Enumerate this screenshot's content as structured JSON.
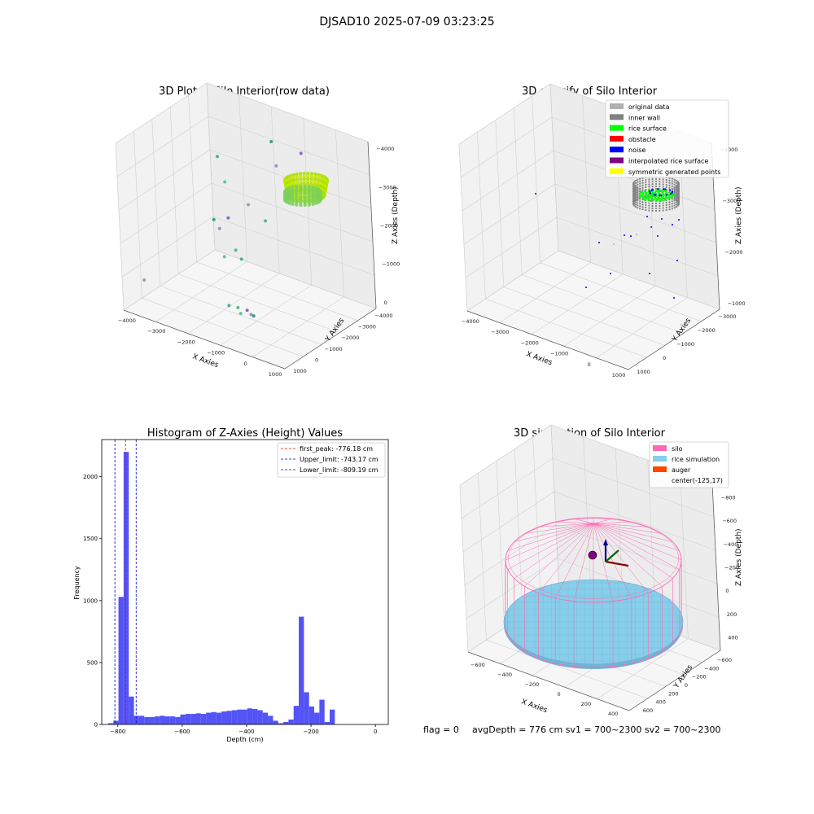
{
  "figure": {
    "suptitle": "DJSAD10 2025-07-09 03:23:25",
    "footer": {
      "flag": "flag = 0",
      "info": "avgDepth = 776 cm  sv1 = 700~2300  sv2 = 700~2300"
    }
  },
  "colors": {
    "histogram_bar": "#4a4af6",
    "peak_line": "#ff0000",
    "limit_line": "#0000cc",
    "silo": "#ff69b4",
    "rice_simulation": "#87ceeb",
    "auger": "#ff4500",
    "pane": "#f2f2f2"
  },
  "chart_data": [
    {
      "type": "scatter",
      "subtype": "3d",
      "title": "3D Plot of Silo Interior(row data)",
      "xlabel": "X Axies",
      "ylabel": "Y Axies",
      "zlabel": "Z Axies (Depth)",
      "x_ticks": [
        "−4000",
        "−3000",
        "−2000",
        "−1000",
        "0",
        "1000"
      ],
      "y_ticks": [
        "1000",
        "0",
        "−1000",
        "−2000",
        "−3000",
        "−4000"
      ],
      "z_ticks": [
        "0",
        "−1000",
        "−2000",
        "−3000",
        "−4000"
      ],
      "series": [
        {
          "values_note_none": "",
          "points": [
            {
              "x": -500,
              "y": 900,
              "z": -800
            },
            {
              "x": -700,
              "y": 700,
              "z": -850
            },
            {
              "x": -900,
              "y": 900,
              "z": -900
            },
            {
              "x": -300,
              "y": 600,
              "z": -750
            },
            {
              "x": -100,
              "y": 800,
              "z": -820
            },
            {
              "x": -600,
              "y": 300,
              "z": -700
            },
            {
              "x": -3800,
              "y": 1000,
              "z": -800
            },
            {
              "x": -1200,
              "y": 500,
              "z": -2000
            },
            {
              "x": -900,
              "y": 300,
              "z": -2200
            },
            {
              "x": -600,
              "y": 500,
              "z": -2100
            },
            {
              "x": -1600,
              "y": 0,
              "z": -2500
            },
            {
              "x": -1900,
              "y": -200,
              "z": -2600
            },
            {
              "x": -1500,
              "y": -400,
              "z": -2700
            },
            {
              "x": -1100,
              "y": -1000,
              "z": -3000
            },
            {
              "x": -2000,
              "y": -1200,
              "z": -3300
            },
            {
              "x": -300,
              "y": -600,
              "z": -2900
            },
            {
              "x": -2500,
              "y": -1700,
              "z": -3700
            },
            {
              "x": -600,
              "y": -2000,
              "z": -3900
            },
            {
              "x": -1400,
              "y": -3200,
              "z": -4000
            },
            {
              "x": -200,
              "y": -2900,
              "z": -4100
            }
          ]
        }
      ]
    },
    {
      "type": "scatter",
      "subtype": "3d",
      "title": "3D classify of Silo Interior",
      "xlabel": "X Axies",
      "ylabel": "Y Axies",
      "zlabel": "Z Axies (Depth)",
      "x_ticks": [
        "−4000",
        "−3000",
        "−2000",
        "−1000",
        "0",
        "1000"
      ],
      "y_ticks": [
        "1000",
        "0",
        "−1000",
        "−2000",
        "−3000"
      ],
      "z_ticks": [
        "−1000",
        "−2000",
        "−3000",
        "−4000"
      ],
      "legend": [
        {
          "label": "original data",
          "color": "#b0b0b0"
        },
        {
          "label": "inner wall",
          "color": "#808080"
        },
        {
          "label": "rice surface",
          "color": "#00ff00"
        },
        {
          "label": "obstacle",
          "color": "#ff0000"
        },
        {
          "label": "noise",
          "color": "#0000ff"
        },
        {
          "label": "interpolated rice surface",
          "color": "#800080"
        },
        {
          "label": "symmetric generated points",
          "color": "#ffff00"
        }
      ],
      "legend_position": "top-right"
    },
    {
      "type": "bar",
      "subtype": "histogram",
      "title": "Histogram of Z-Axies (Height) Values",
      "xlabel": "Depth (cm)",
      "ylabel": "Frequency",
      "xlim": [
        -850,
        40
      ],
      "ylim": [
        0,
        2300
      ],
      "x_ticks": [
        -800,
        -600,
        -400,
        -200,
        0
      ],
      "x_tick_labels": [
        "−800",
        "−600",
        "−400",
        "−200",
        "0"
      ],
      "y_ticks": [
        0,
        500,
        1000,
        1500,
        2000
      ],
      "y_tick_labels": [
        "0",
        "500",
        "1000",
        "1500",
        "2000"
      ],
      "bin_start": -830,
      "bin_width": 16,
      "values": [
        10,
        30,
        1030,
        2200,
        225,
        70,
        70,
        60,
        60,
        65,
        70,
        65,
        65,
        60,
        80,
        85,
        85,
        90,
        85,
        95,
        100,
        95,
        105,
        110,
        115,
        120,
        120,
        130,
        125,
        115,
        95,
        70,
        30,
        10,
        20,
        40,
        150,
        870,
        260,
        145,
        95,
        200,
        20,
        120
      ],
      "vlines": [
        {
          "x": -776.18,
          "label": "first_peak: -776.18 cm",
          "color": "#ff0000"
        },
        {
          "x": -743.17,
          "label": "Upper_limit: -743.17 cm",
          "color": "#0000cc"
        },
        {
          "x": -809.19,
          "label": "Lower_limit: -809.19 cm",
          "color": "#0000cc"
        }
      ],
      "legend_position": "top-right"
    },
    {
      "type": "other",
      "subtype": "3d-surface",
      "title": "3D simulation of Silo Interior",
      "xlabel": "X Axies",
      "ylabel": "Y Axies",
      "zlabel": "Z Axies (Depth)",
      "x_ticks": [
        "−600",
        "−400",
        "−200",
        "0",
        "200",
        "400"
      ],
      "y_ticks": [
        "600",
        "400",
        "200",
        "0",
        "−200",
        "−400",
        "−600"
      ],
      "z_ticks": [
        "400",
        "200",
        "0",
        "−200",
        "−400",
        "−600",
        "−800"
      ],
      "legend": [
        {
          "label": "silo",
          "color": "#ff69b4"
        },
        {
          "label": "rice simulation",
          "color": "#87ceeb"
        },
        {
          "label": "auger",
          "color": "#ff4500"
        },
        {
          "label": "center(-125,17)",
          "color": ""
        }
      ],
      "legend_position": "top-right"
    }
  ]
}
